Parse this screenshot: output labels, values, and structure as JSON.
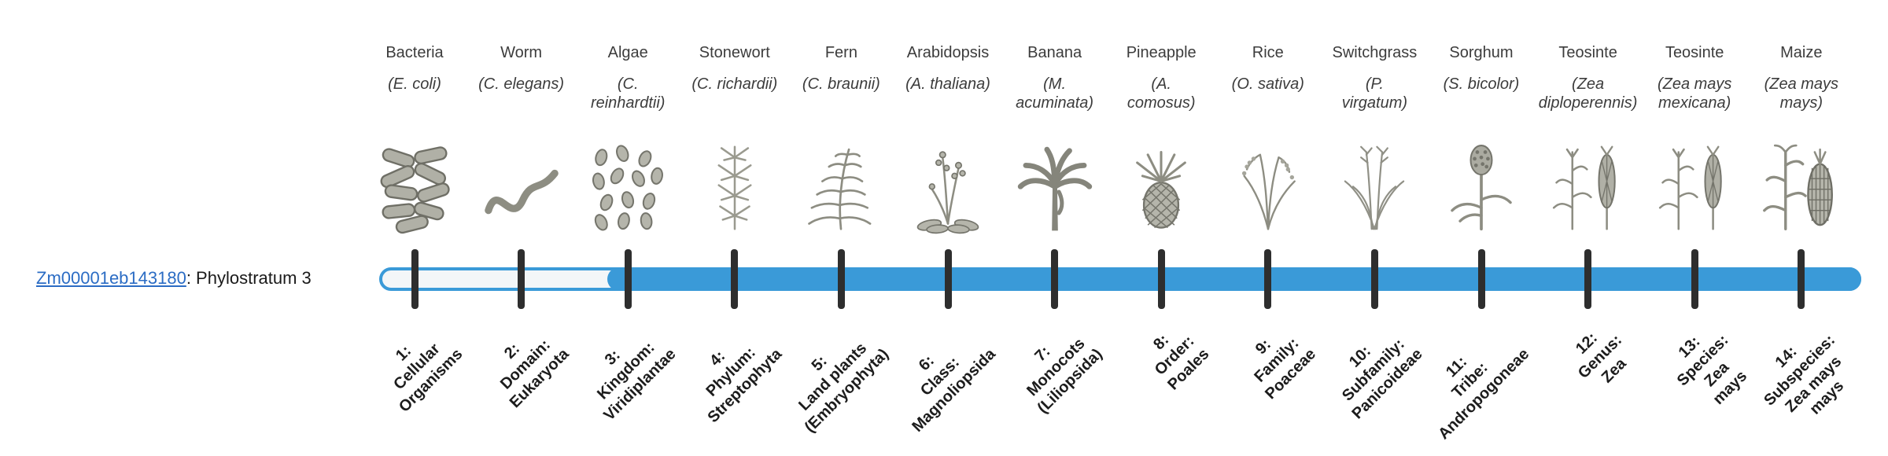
{
  "gene": {
    "id": "Zm00001eb143180",
    "suffix": ": Phylostratum 3",
    "phylostratum": 3
  },
  "species": [
    {
      "name": "Bacteria",
      "sci": "(E. coli)",
      "icon": "bacteria-icon"
    },
    {
      "name": "Worm",
      "sci": "(C. elegans)",
      "icon": "worm-icon"
    },
    {
      "name": "Algae",
      "sci": "(C.\nreinhardtii)",
      "icon": "algae-icon"
    },
    {
      "name": "Stonewort",
      "sci": "(C. richardii)",
      "icon": "stonewort-icon"
    },
    {
      "name": "Fern",
      "sci": "(C. braunii)",
      "icon": "fern-icon"
    },
    {
      "name": "Arabidopsis",
      "sci": "(A. thaliana)",
      "icon": "arabidopsis-icon"
    },
    {
      "name": "Banana",
      "sci": "(M.\nacuminata)",
      "icon": "banana-icon"
    },
    {
      "name": "Pineapple",
      "sci": "(A.\ncomosus)",
      "icon": "pineapple-icon"
    },
    {
      "name": "Rice",
      "sci": "(O. sativa)",
      "icon": "rice-icon"
    },
    {
      "name": "Switchgrass",
      "sci": "(P.\nvirgatum)",
      "icon": "switchgrass-icon"
    },
    {
      "name": "Sorghum",
      "sci": "(S. bicolor)",
      "icon": "sorghum-icon"
    },
    {
      "name": "Teosinte",
      "sci": "(Zea\ndiploperennis)",
      "icon": "teosinte-icon"
    },
    {
      "name": "Teosinte",
      "sci": "(Zea mays\nmexicana)",
      "icon": "teosinte-icon"
    },
    {
      "name": "Maize",
      "sci": "(Zea mays\nmays)",
      "icon": "maize-icon"
    }
  ],
  "strata": [
    {
      "label": "1:\nCellular\nOrganisms"
    },
    {
      "label": "2:\nDomain:\nEukaryota"
    },
    {
      "label": "3:\nKingdom:\nViridiplantae"
    },
    {
      "label": "4:\nPhylum:\nStreptophyta"
    },
    {
      "label": "5:\nLand plants\n(Embryophyta)"
    },
    {
      "label": "6:\nClass:\nMagnoliopsida"
    },
    {
      "label": "7:\nMonocots\n(Liliopsida)"
    },
    {
      "label": "8:\nOrder:\nPoales"
    },
    {
      "label": "9:\nFamily:\nPoaceae"
    },
    {
      "label": "10:\nSubfamily:\nPanicoideae"
    },
    {
      "label": "11:\nTribe:\nAndropogoneae"
    },
    {
      "label": "12:\nGenus:\nZea"
    },
    {
      "label": "13:\nSpecies:\nZea\nmays"
    },
    {
      "label": "14:\nSubspecies:\nZea mays\nmays"
    }
  ],
  "colors": {
    "bar_fill": "#3a9ad8",
    "bar_track_border": "#3a9ad8",
    "bar_track_bg": "#f3f6f8",
    "tick": "#2e2e2e",
    "link": "#2b6cc4",
    "species_text": "#3c3c3c",
    "strata_label": "#1c1c1c"
  }
}
